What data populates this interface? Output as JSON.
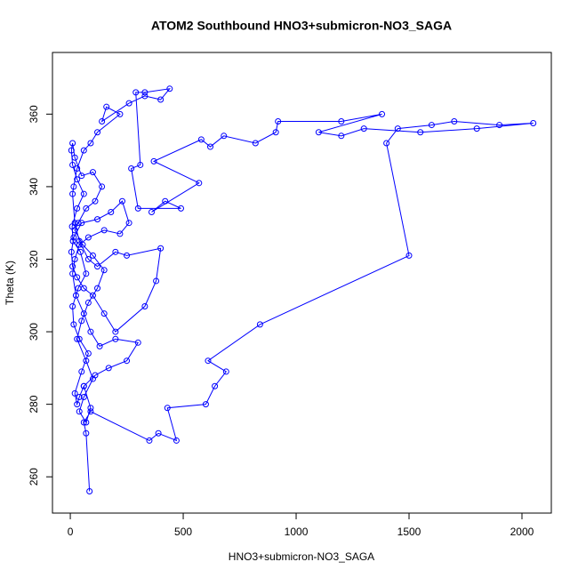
{
  "chart_data": {
    "type": "line",
    "title": "ATOM2 Southbound HNO3+submicron-NO3_SAGA",
    "x_label": "HNO3+submicron-NO3_SAGA",
    "y_label": "Theta (K)",
    "color": "#0000ff",
    "markers": true,
    "xlim": [
      -79,
      2130
    ],
    "ylim": [
      250,
      377
    ],
    "xticks": [
      0,
      500,
      1000,
      1500,
      2000
    ],
    "yticks": [
      260,
      280,
      300,
      320,
      340,
      360
    ],
    "x": [
      85,
      70,
      60,
      90,
      350,
      390,
      470,
      430,
      600,
      640,
      690,
      610,
      840,
      1500,
      1400,
      1450,
      1600,
      1700,
      1900,
      2050,
      1800,
      1550,
      1300,
      1200,
      1100,
      1380,
      1200,
      920,
      910,
      820,
      680,
      620,
      580,
      370,
      570,
      360,
      420,
      490,
      300,
      270,
      310,
      290,
      330,
      440,
      400,
      330,
      260,
      140,
      160,
      220,
      120,
      90,
      60,
      30,
      15,
      10,
      20,
      40,
      80,
      120,
      200,
      250,
      400,
      380,
      330,
      200,
      150,
      100,
      60,
      30,
      10,
      5,
      15,
      50,
      120,
      180,
      230,
      260,
      220,
      150,
      80,
      40,
      20,
      10,
      25,
      60,
      90,
      130,
      200,
      300,
      250,
      170,
      110,
      60,
      40,
      30,
      20,
      50,
      80,
      40,
      15,
      10,
      35,
      70,
      45,
      12,
      8,
      30,
      60,
      30,
      10,
      5,
      10,
      20,
      50,
      100,
      140,
      110,
      70,
      35,
      20,
      55,
      100,
      150,
      120,
      80,
      50,
      30,
      70,
      100,
      60,
      40,
      70,
      90,
      60
    ],
    "values": [
      256,
      272,
      275,
      278,
      270,
      272,
      270,
      279,
      280,
      285,
      289,
      292,
      302,
      321,
      352,
      356,
      357,
      358,
      357,
      357.5,
      356,
      355,
      356,
      354,
      355,
      360,
      358,
      358,
      355,
      352,
      354,
      351,
      353,
      347,
      341,
      333,
      336,
      334,
      334,
      345,
      346,
      366,
      366,
      367,
      364,
      365,
      363,
      358,
      362,
      360,
      355,
      352,
      350,
      345,
      340,
      338,
      330,
      325,
      320,
      318,
      322,
      321,
      323,
      314,
      307,
      300,
      305,
      310,
      312,
      315,
      318,
      322,
      326,
      330,
      331,
      333,
      336,
      330,
      327,
      328,
      326,
      324,
      320,
      316,
      310,
      305,
      300,
      296,
      298,
      297,
      292,
      290,
      288,
      285,
      282,
      280,
      283,
      289,
      294,
      298,
      302,
      307,
      312,
      316,
      322,
      325,
      329,
      334,
      338,
      342,
      346,
      350,
      352,
      348,
      343,
      344,
      340,
      336,
      334,
      330,
      328,
      324,
      321,
      317,
      312,
      308,
      303,
      298,
      292,
      287,
      282,
      278,
      275,
      279,
      285
    ]
  }
}
